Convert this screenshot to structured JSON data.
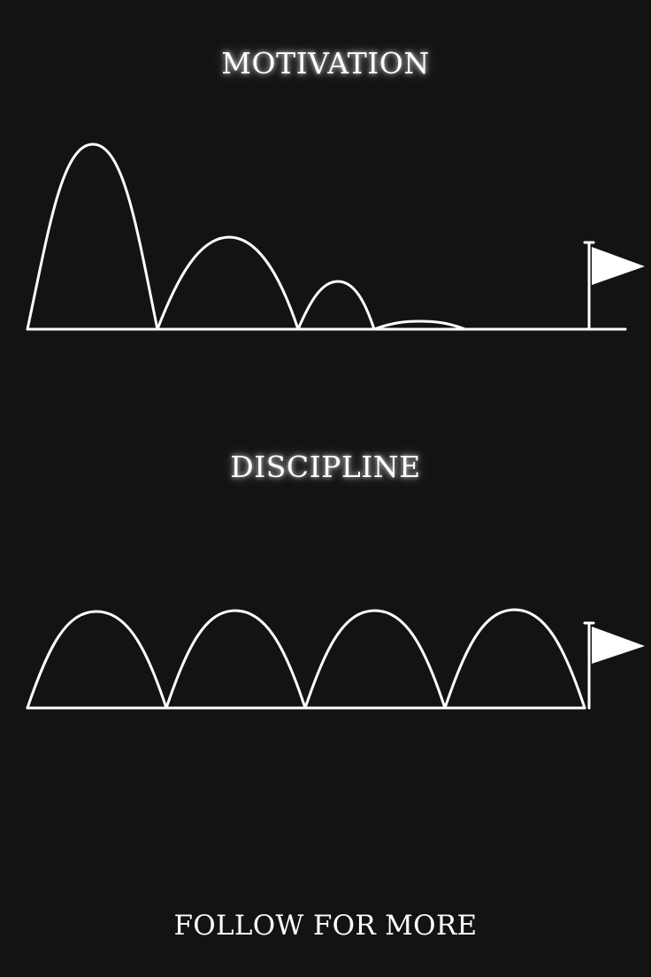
{
  "motivation": {
    "title": "MOTIVATION"
  },
  "discipline": {
    "title": "DISCIPLINE"
  },
  "footer": {
    "cta": "FOLLOW FOR MORE"
  },
  "colors": {
    "background": "#131313",
    "foreground": "#ffffff"
  }
}
